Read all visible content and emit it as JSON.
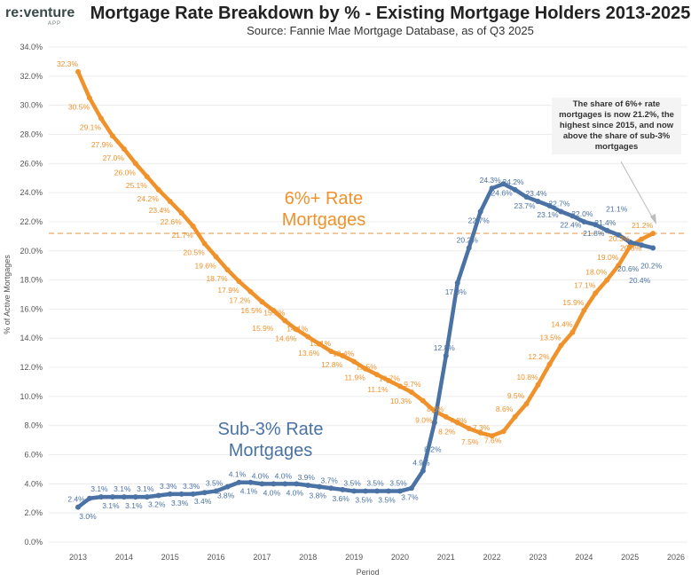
{
  "header": {
    "logo": "re:venture",
    "logo_sub": "APP",
    "title": "Mortgage Rate Breakdown by % - Existing Mortgage Holders 2013-2025",
    "subtitle": "Source: Fannie Mae Mortgage Database, as of Q3 2025"
  },
  "chart_data": {
    "type": "line",
    "title": "Mortgage Rate Breakdown by % - Existing Mortgage Holders 2013-2025",
    "xlabel": "Period",
    "ylabel": "% of Active Mortgages",
    "ylim": [
      0,
      34
    ],
    "xlim": [
      2013,
      2026
    ],
    "yticks": [
      "0.0%",
      "2.0%",
      "4.0%",
      "6.0%",
      "8.0%",
      "10.0%",
      "12.0%",
      "14.0%",
      "16.0%",
      "18.0%",
      "20.0%",
      "22.0%",
      "24.0%",
      "26.0%",
      "28.0%",
      "30.0%",
      "32.0%",
      "34.0%"
    ],
    "xticks": [
      "2013",
      "2014",
      "2015",
      "2016",
      "2017",
      "2018",
      "2019",
      "2020",
      "2021",
      "2022",
      "2023",
      "2024",
      "2025",
      "2026"
    ],
    "x_start": 2013,
    "x_step": 0.25,
    "grid": true,
    "series": [
      {
        "name": "6%+ Rate Mortgages",
        "label_line1": "6%+ Rate",
        "label_line2": "Mortgages",
        "color": "#f0922b",
        "values": [
          32.3,
          30.5,
          29.1,
          27.9,
          27.0,
          26.0,
          25.1,
          24.2,
          23.4,
          22.6,
          21.7,
          20.5,
          19.6,
          18.7,
          17.9,
          17.2,
          16.5,
          15.9,
          15.2,
          14.6,
          14.1,
          13.6,
          13.1,
          12.8,
          12.4,
          11.9,
          11.5,
          11.1,
          10.7,
          10.3,
          9.7,
          9.0,
          8.6,
          8.2,
          7.8,
          7.5,
          7.3,
          7.6,
          8.6,
          9.5,
          10.8,
          12.2,
          13.5,
          14.4,
          15.9,
          17.1,
          18.0,
          19.0,
          20.3,
          20.8,
          21.2
        ]
      },
      {
        "name": "Sub-3% Rate Mortgages",
        "label_line1": "Sub-3% Rate",
        "label_line2": "Mortgages",
        "color": "#4a72a4",
        "values": [
          2.4,
          3.0,
          3.1,
          3.1,
          3.1,
          3.1,
          3.1,
          3.2,
          3.3,
          3.3,
          3.3,
          3.4,
          3.5,
          3.8,
          4.1,
          4.1,
          4.0,
          4.0,
          4.0,
          4.0,
          3.9,
          3.8,
          3.7,
          3.6,
          3.5,
          3.5,
          3.5,
          3.5,
          3.5,
          3.7,
          4.9,
          8.2,
          12.8,
          17.8,
          20.2,
          22.7,
          24.3,
          24.6,
          24.2,
          23.7,
          23.4,
          23.1,
          22.7,
          22.4,
          22.0,
          21.8,
          21.4,
          21.1,
          20.6,
          20.4,
          20.2
        ]
      }
    ],
    "reference_line": {
      "value": 21.2,
      "style": "dashed",
      "color": "#f0b070"
    },
    "annotation": "The share of 6%+ rate mortgages is now 21.2%, the highest since 2015, and now above the share of sub-3% mortgages"
  }
}
